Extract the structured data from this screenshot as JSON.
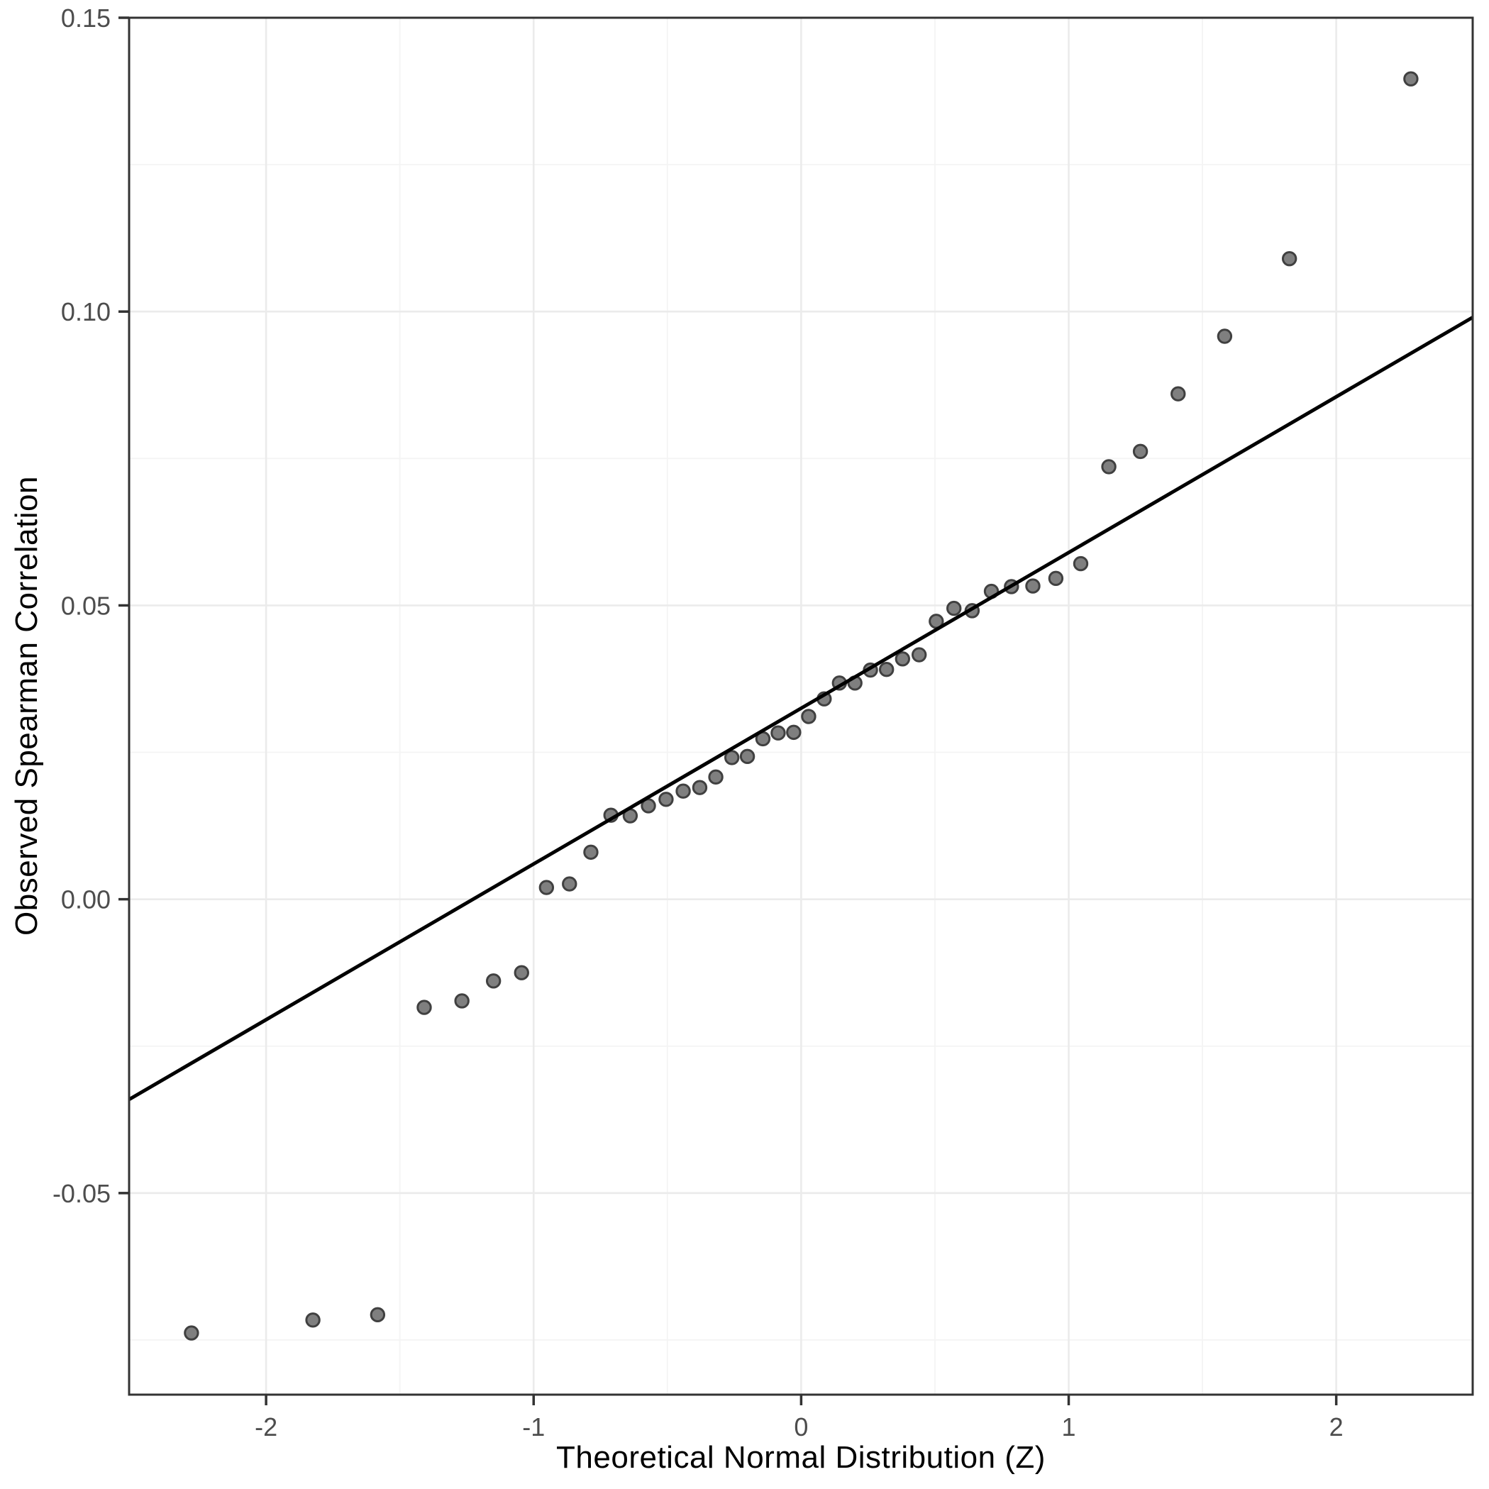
{
  "chart_data": {
    "type": "scatter",
    "subtype": "qq-plot",
    "title": "",
    "xlabel": "Theoretical Normal Distribution (Z)",
    "ylabel": "Observed Spearman Correlation",
    "xlim": [
      -2.512,
      2.51
    ],
    "ylim": [
      -0.0843,
      0.15
    ],
    "x_major_ticks": [
      -2,
      -1,
      0,
      1,
      2
    ],
    "x_tick_labels": [
      "-2",
      "-1",
      "0",
      "1",
      "2"
    ],
    "x_minor_ticks": [
      -1.5,
      -0.5,
      0.5,
      1.5
    ],
    "y_major_ticks": [
      -0.05,
      0.0,
      0.05,
      0.1,
      0.15
    ],
    "y_tick_labels": [
      "-0.05",
      "0.00",
      "0.05",
      "0.10",
      "0.15"
    ],
    "y_minor_ticks": [
      -0.075,
      -0.025,
      0.025,
      0.075,
      0.125
    ],
    "grid": true,
    "legend_position": "none",
    "points": [
      [
        -2.279,
        -0.0738
      ],
      [
        -1.825,
        -0.0716
      ],
      [
        -1.583,
        -0.0707
      ],
      [
        -1.409,
        -0.0184
      ],
      [
        -1.268,
        -0.0173
      ],
      [
        -1.15,
        -0.0139
      ],
      [
        -1.045,
        -0.0125
      ],
      [
        -0.952,
        0.002
      ],
      [
        -0.866,
        0.0026
      ],
      [
        -0.786,
        0.008
      ],
      [
        -0.711,
        0.0143
      ],
      [
        -0.639,
        0.0142
      ],
      [
        -0.571,
        0.0159
      ],
      [
        -0.505,
        0.017
      ],
      [
        -0.441,
        0.0184
      ],
      [
        -0.379,
        0.019
      ],
      [
        -0.319,
        0.0208
      ],
      [
        -0.259,
        0.0241
      ],
      [
        -0.201,
        0.0243
      ],
      [
        -0.143,
        0.0273
      ],
      [
        -0.086,
        0.0283
      ],
      [
        -0.028,
        0.0284
      ],
      [
        0.028,
        0.0311
      ],
      [
        0.086,
        0.0341
      ],
      [
        0.143,
        0.0368
      ],
      [
        0.201,
        0.0368
      ],
      [
        0.259,
        0.039
      ],
      [
        0.319,
        0.0391
      ],
      [
        0.379,
        0.0409
      ],
      [
        0.441,
        0.0416
      ],
      [
        0.505,
        0.0473
      ],
      [
        0.571,
        0.0495
      ],
      [
        0.639,
        0.0491
      ],
      [
        0.711,
        0.0524
      ],
      [
        0.786,
        0.0532
      ],
      [
        0.866,
        0.0533
      ],
      [
        0.952,
        0.0546
      ],
      [
        1.045,
        0.0571
      ],
      [
        1.15,
        0.0736
      ],
      [
        1.268,
        0.0762
      ],
      [
        1.409,
        0.086
      ],
      [
        1.583,
        0.0958
      ],
      [
        1.825,
        0.109
      ],
      [
        2.279,
        0.1396
      ]
    ],
    "reference_line": {
      "intercept": 0.0325,
      "slope": 0.0265
    },
    "colors": {
      "background": "#ffffff",
      "grid_major": "#ebebeb",
      "grid_minor": "#f4f4f4",
      "panel_border": "#333333",
      "tick_mark": "#333333",
      "tick_label": "#4d4d4d",
      "axis_title": "#000000",
      "point_fill": "#787878",
      "point_stroke": "#404040",
      "line": "#000000"
    }
  }
}
